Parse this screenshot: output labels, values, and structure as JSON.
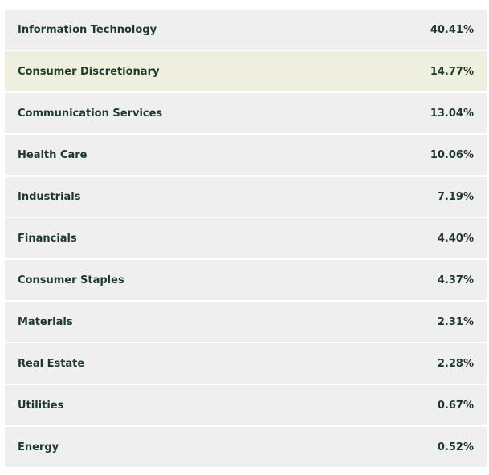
{
  "colors": {
    "row_background": "#efefef",
    "highlight_background": "#efefdf",
    "text": "#1e3a2a"
  },
  "highlighted_row": 1,
  "rows": [
    {
      "name": "Information Technology",
      "weight": "40.41%"
    },
    {
      "name": "Consumer Discretionary",
      "weight": "14.77%"
    },
    {
      "name": "Communication Services",
      "weight": "13.04%"
    },
    {
      "name": "Health Care",
      "weight": "10.06%"
    },
    {
      "name": "Industrials",
      "weight": "7.19%"
    },
    {
      "name": "Financials",
      "weight": "4.40%"
    },
    {
      "name": "Consumer Staples",
      "weight": "4.37%"
    },
    {
      "name": "Materials",
      "weight": "2.31%"
    },
    {
      "name": "Real Estate",
      "weight": "2.28%"
    },
    {
      "name": "Utilities",
      "weight": "0.67%"
    },
    {
      "name": "Energy",
      "weight": "0.52%"
    }
  ]
}
